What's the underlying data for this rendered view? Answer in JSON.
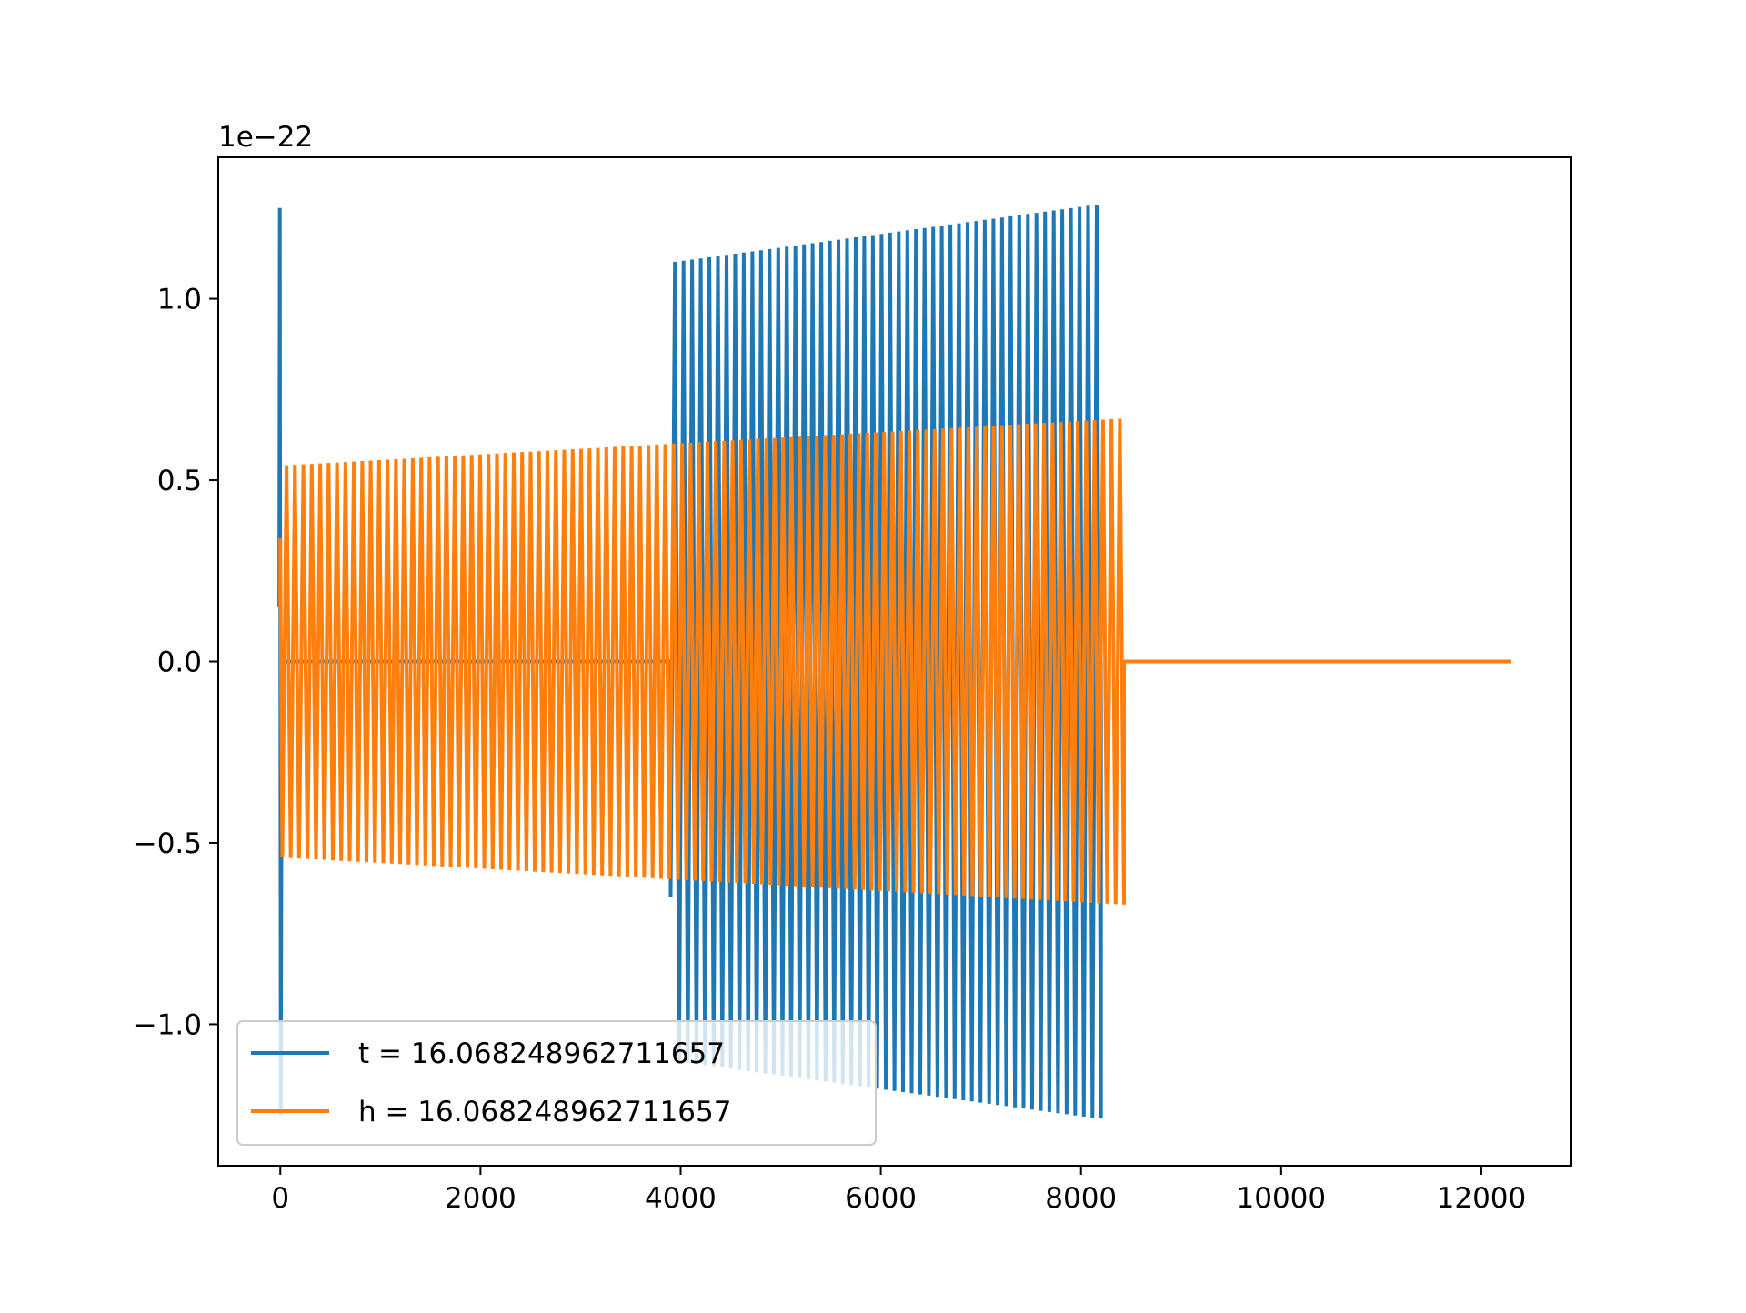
{
  "chart_data": {
    "type": "line",
    "title": "",
    "xlabel": "",
    "ylabel": "",
    "y_offset_text": "1e−22",
    "xlim": [
      -620,
      12900
    ],
    "ylim": [
      -1.39,
      1.39
    ],
    "x_ticks": [
      0,
      2000,
      4000,
      6000,
      8000,
      10000,
      12000
    ],
    "x_tick_labels": [
      "0",
      "2000",
      "4000",
      "6000",
      "8000",
      "10000",
      "12000"
    ],
    "y_ticks": [
      -1.0,
      -0.5,
      0.0,
      0.5,
      1.0
    ],
    "y_tick_labels": [
      "−1.0",
      "−0.5",
      "0.0",
      "0.5",
      "1.0"
    ],
    "grid": false,
    "legend_position": "lower-left",
    "series": [
      {
        "name": "t = 16.068248962711657",
        "color": "#1f77b4",
        "description": "Oscillating signal: spike near x=0 (peak 1.25, trough -1.25), zero until ~3900, then oscillation with growing envelope from ~1.10 at x=3930 to ~1.26 at x=8200, ends at ~8200",
        "cycles": 50,
        "envelope": [
          {
            "x": -10,
            "amp": 0.0
          },
          {
            "x": 3900,
            "amp": 0.0
          },
          {
            "x": 3930,
            "amp": 1.1
          },
          {
            "x": 8200,
            "amp": 1.26
          }
        ],
        "spike": {
          "x": 0,
          "max": 1.25,
          "min": -1.25
        }
      },
      {
        "name": "h = 16.068248962711657",
        "color": "#ff7f0e",
        "description": "Oscillating signal from x=0 to ~8430 with envelope growing from ~0.54 to ~0.67, then flat at 0 until ~12300",
        "cycles": 100,
        "envelope": [
          {
            "x": 0,
            "amp": 0.54
          },
          {
            "x": 8430,
            "amp": 0.67
          }
        ],
        "flat_end_x": 12300
      }
    ]
  }
}
